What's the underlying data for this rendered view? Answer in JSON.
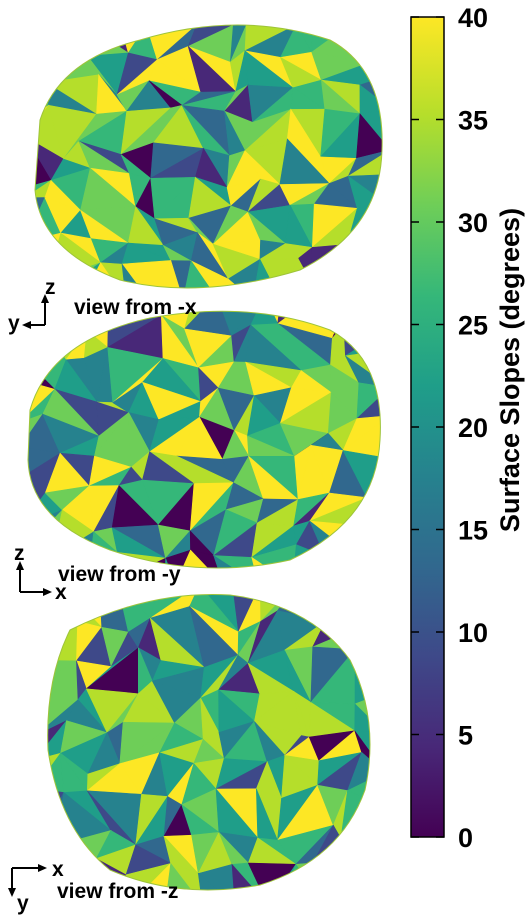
{
  "colorbar": {
    "title": "Surface Slopes (degrees)",
    "min": 0,
    "max": 40,
    "ticks": [
      "0",
      "5",
      "10",
      "15",
      "20",
      "25",
      "30",
      "35",
      "40"
    ],
    "colormap": [
      "#440154",
      "#482878",
      "#3e4989",
      "#31688e",
      "#26828e",
      "#1f9e89",
      "#35b779",
      "#6ece58",
      "#b5de2b",
      "#fde725"
    ]
  },
  "views": [
    {
      "label": "view from -x",
      "axis_h": "y",
      "axis_v": "z"
    },
    {
      "label": "view from -y",
      "axis_h": "x",
      "axis_v": "z"
    },
    {
      "label": "view from -z",
      "axis_h": "x",
      "axis_v": "y"
    }
  ]
}
